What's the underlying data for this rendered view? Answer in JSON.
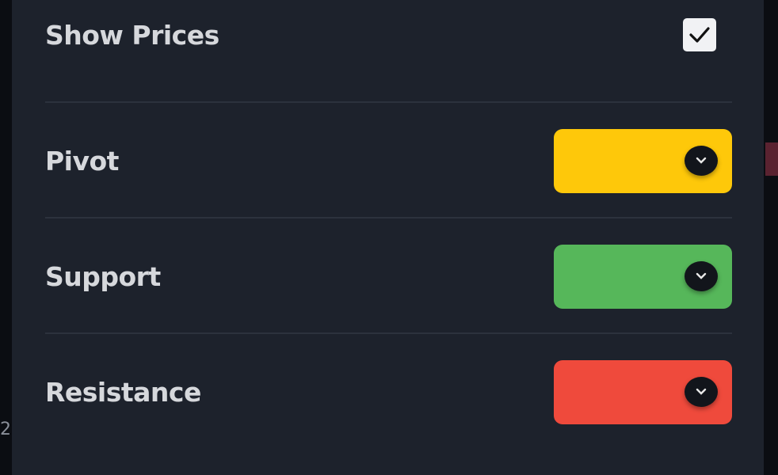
{
  "background_edge_text": "2",
  "settings": {
    "show_prices": {
      "label": "Show Prices",
      "checked": true,
      "icon": "checkmark-icon"
    },
    "levels": [
      {
        "label": "Pivot",
        "color": "#fec80a",
        "icon": "chevron-down-icon"
      },
      {
        "label": "Support",
        "color": "#56b75a",
        "icon": "chevron-down-icon"
      },
      {
        "label": "Resistance",
        "color": "#ef4a3c",
        "icon": "chevron-down-icon"
      }
    ]
  }
}
